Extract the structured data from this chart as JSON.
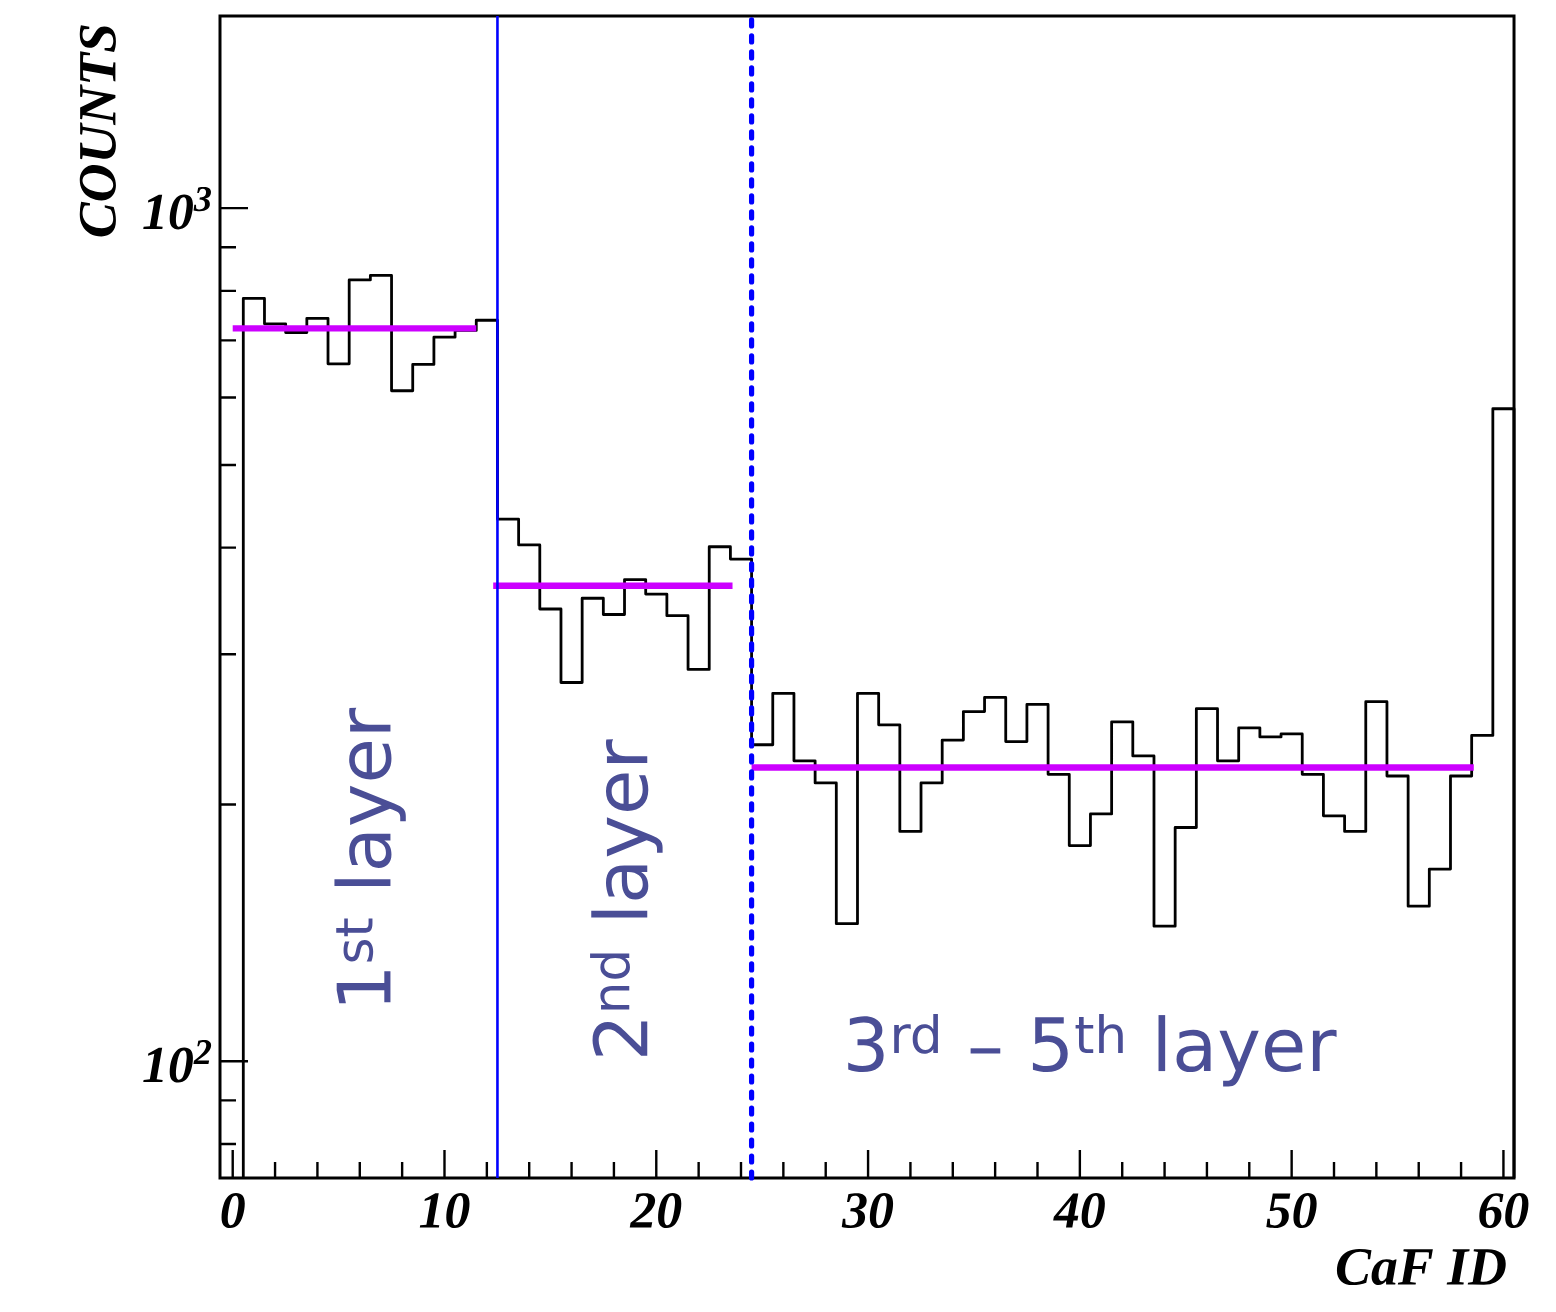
{
  "chart_data": {
    "type": "histogram",
    "xlabel": "CaF ID",
    "ylabel": "COUNTS",
    "log": true,
    "xlim": [
      -0.6,
      60.5
    ],
    "ylim": [
      73,
      1680
    ],
    "xticks": [
      0,
      10,
      20,
      30,
      40,
      50,
      60
    ],
    "yticks": [
      {
        "value": 100,
        "label": "10$^{2}$"
      },
      {
        "value": 1000,
        "label": "10$^{3}$"
      }
    ],
    "bins": [
      0.5,
      1.5,
      2.5,
      3.5,
      4.5,
      5.5,
      6.5,
      7.5,
      8.5,
      9.5,
      10.5,
      11.5,
      12.5,
      13.5,
      14.5,
      15.5,
      16.5,
      17.5,
      18.5,
      19.5,
      20.5,
      21.5,
      22.5,
      23.5,
      24.5,
      25.5,
      26.5,
      27.5,
      28.5,
      29.5,
      30.5,
      31.5,
      32.5,
      33.5,
      34.5,
      35.5,
      36.5,
      37.5,
      38.5,
      39.5,
      40.5,
      41.5,
      42.5,
      43.5,
      44.5,
      45.5,
      46.5,
      47.5,
      48.5,
      49.5,
      50.5,
      51.5,
      52.5,
      53.5,
      54.5,
      55.5,
      56.5,
      57.5,
      58.5,
      59.5,
      60.5
    ],
    "series": [
      {
        "color": "#000000",
        "values": [
          784,
          732,
          715,
          743,
          657,
          824,
          834,
          611,
          656,
          706,
          719,
          739,
          432,
          403,
          339,
          278,
          349,
          334,
          367,
          353,
          333,
          288,
          401,
          388,
          235,
          270,
          225,
          212,
          145,
          270,
          248,
          186,
          212,
          238,
          257,
          267,
          237,
          262,
          217,
          179,
          195,
          250,
          228,
          144,
          188,
          259,
          225,
          246,
          240,
          242,
          217,
          194,
          186,
          264,
          216,
          152,
          168,
          216,
          241,
          582
        ]
      },
      {
        "type": "line",
        "color": "#cc00ff",
        "x": [
          0,
          11.5
        ],
        "values": [
          723,
          723
        ]
      },
      {
        "type": "line",
        "color": "#cc00ff",
        "x": [
          12.3,
          23.6
        ],
        "values": [
          361,
          361
        ]
      },
      {
        "type": "line",
        "color": "#cc00ff",
        "x": [
          24.5,
          58.6
        ],
        "values": [
          221,
          221
        ]
      }
    ],
    "ref_lines": [
      {
        "axis": "x",
        "value": 12.5,
        "color": "#0000ff",
        "line_style": "solid"
      },
      {
        "axis": "x",
        "value": 24.5,
        "color": "#0000ff",
        "line_style": "dashed"
      }
    ],
    "annotations": [
      "1$^{st}$ layer",
      "2$^{nd}$ layer",
      "3$^{rd}$ – 5$^{th}$ layer"
    ],
    "grid": false
  }
}
